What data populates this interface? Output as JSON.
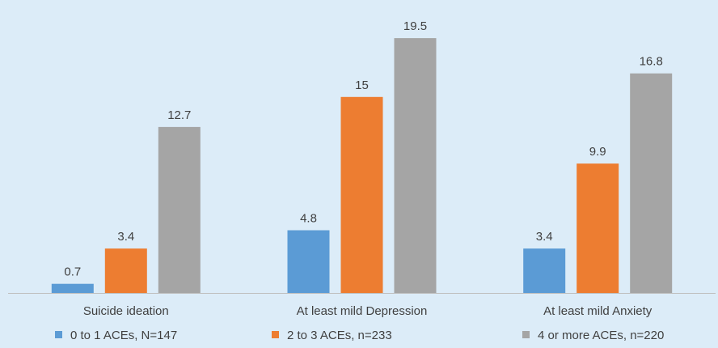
{
  "chart_data": {
    "type": "bar",
    "categories": [
      "Suicide ideation",
      "At least mild Depression",
      "At least mild Anxiety"
    ],
    "series": [
      {
        "name": "0 to 1 ACEs, N=147",
        "color": "#5b9bd5",
        "values": [
          0.7,
          4.8,
          3.4
        ]
      },
      {
        "name": "2 to 3 ACEs, n=233",
        "color": "#ed7d31",
        "values": [
          3.4,
          15,
          9.9
        ]
      },
      {
        "name": "4 or more ACEs, n=220",
        "color": "#a5a5a5",
        "values": [
          12.7,
          19.5,
          16.8
        ]
      }
    ],
    "data_labels": [
      [
        "0.7",
        "4.8",
        "3.4"
      ],
      [
        "3.4",
        "15",
        "9.9"
      ],
      [
        "12.7",
        "19.5",
        "16.8"
      ]
    ],
    "ylim": [
      0,
      20
    ],
    "grid": false,
    "legend_position": "bottom",
    "axis_color": "#bfbfbf",
    "background": "#dcecf8"
  }
}
